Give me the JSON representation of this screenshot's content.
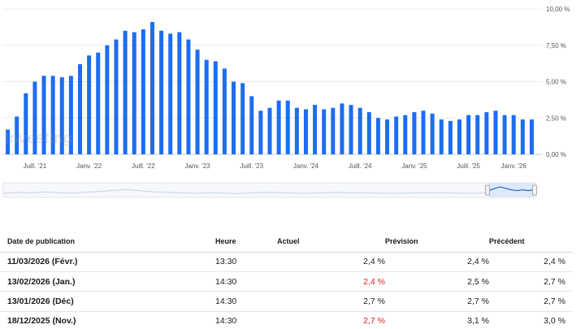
{
  "chart_data": {
    "type": "bar",
    "color": "#1c6df0",
    "values": [
      1.7,
      2.6,
      4.2,
      5.0,
      5.4,
      5.4,
      5.3,
      5.4,
      6.2,
      6.8,
      7.0,
      7.5,
      7.9,
      8.5,
      8.4,
      8.6,
      9.1,
      8.5,
      8.3,
      8.4,
      7.9,
      7.2,
      6.5,
      6.4,
      5.9,
      5.0,
      4.9,
      4.0,
      3.0,
      3.2,
      3.7,
      3.7,
      3.2,
      3.1,
      3.4,
      3.1,
      3.2,
      3.5,
      3.4,
      3.2,
      2.9,
      2.5,
      2.4,
      2.6,
      2.7,
      2.9,
      3.0,
      2.8,
      2.4,
      2.3,
      2.4,
      2.7,
      2.7,
      2.9,
      3.0,
      2.7,
      2.7,
      2.4,
      2.4
    ],
    "ylim": [
      0,
      10
    ],
    "y_ticks": [
      "0,00 %",
      "2,50 %",
      "5,00 %",
      "7,50 %",
      "10,00 %"
    ],
    "x_ticks": [
      {
        "label": "Juill. '21",
        "index": 3
      },
      {
        "label": "Janv. '22",
        "index": 9
      },
      {
        "label": "Juill. '22",
        "index": 15
      },
      {
        "label": "Janv. '23",
        "index": 21
      },
      {
        "label": "Juill. '23",
        "index": 27
      },
      {
        "label": "Janv. '24",
        "index": 33
      },
      {
        "label": "Juill. '24",
        "index": 39
      },
      {
        "label": "Janv. '25",
        "index": 45
      },
      {
        "label": "Juill. '25",
        "index": 51
      },
      {
        "label": "Janv. '26",
        "index": 56
      }
    ],
    "grid": true,
    "y_axis_position": "right"
  },
  "watermark": "Investing",
  "table": {
    "headers": [
      "Date de publication",
      "Heure",
      "Actuel",
      "Prévision",
      "Précédent"
    ],
    "rows": [
      {
        "date": "11/03/2026 (Févr.)",
        "time": "13:30",
        "actual": "2,4 %",
        "actual_negative": false,
        "forecast": "2,4 %",
        "previous": "2,4 %"
      },
      {
        "date": "13/02/2026 (Jan.)",
        "time": "14:30",
        "actual": "2,4 %",
        "actual_negative": true,
        "forecast": "2,5 %",
        "previous": "2,7 %"
      },
      {
        "date": "13/01/2026 (Déc)",
        "time": "14:30",
        "actual": "2,7 %",
        "actual_negative": false,
        "forecast": "2,7 %",
        "previous": "2,7 %"
      },
      {
        "date": "18/12/2025 (Nov.)",
        "time": "14:30",
        "actual": "2,7 %",
        "actual_negative": true,
        "forecast": "3,1 %",
        "previous": "3,0 %"
      }
    ]
  }
}
